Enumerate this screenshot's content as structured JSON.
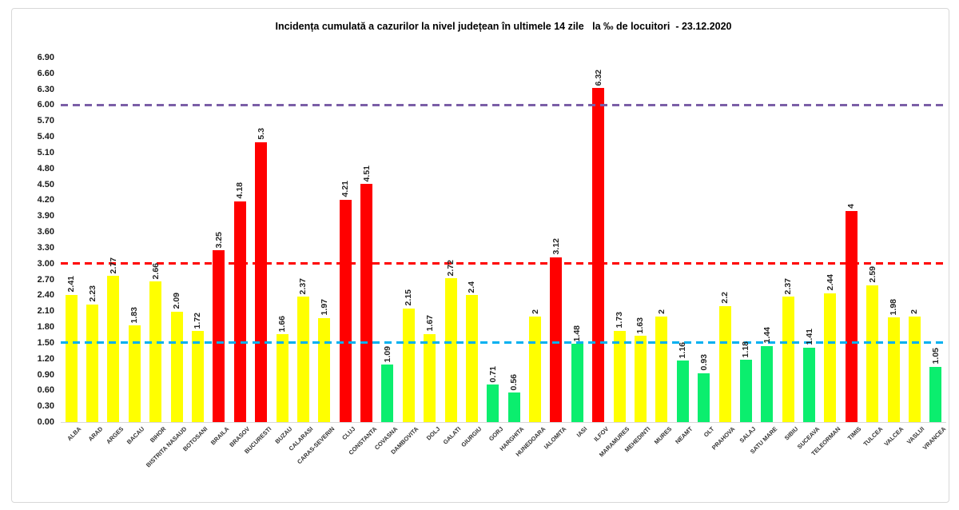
{
  "chart_data": {
    "type": "bar",
    "title": "Incidența cumulată a cazurilor la nivel județean în ultimele 14 zile   la ‰ de locuitori  - 23.12.2020",
    "xlabel": "",
    "ylabel": "",
    "ylim": [
      0,
      6.9
    ],
    "grid": false,
    "legend": false,
    "y_ticks": [
      "0.00",
      "0.30",
      "0.60",
      "0.90",
      "1.20",
      "1.50",
      "1.80",
      "2.10",
      "2.40",
      "2.70",
      "3.00",
      "3.30",
      "3.60",
      "3.90",
      "4.20",
      "4.50",
      "4.80",
      "5.10",
      "5.40",
      "5.70",
      "6.00",
      "6.30",
      "6.60",
      "6.90"
    ],
    "categories": [
      "ALBA",
      "ARAD",
      "ARGES",
      "BACAU",
      "BIHOR",
      "BISTRITA NASAUD",
      "BOTOSANI",
      "BRAILA",
      "BRASOV",
      "BUCURESTI",
      "BUZAU",
      "CALARASI",
      "CARAS-SEVERIN",
      "CLUJ",
      "CONSTANTA",
      "COVASNA",
      "DAMBOVITA",
      "DOLJ",
      "GALATI",
      "GIURGIU",
      "GORJ",
      "HARGHITA",
      "HUNEDOARA",
      "IALOMITA",
      "IASI",
      "ILFOV",
      "MARAMURES",
      "MEHEDINTI",
      "MURES",
      "NEAMT",
      "OLT",
      "PRAHOVA",
      "SALAJ",
      "SATU MARE",
      "SIBIU",
      "SUCEAVA",
      "TELEORMAN",
      "TIMIS",
      "TULCEA",
      "VALCEA",
      "VASLUI",
      "VRANCEA"
    ],
    "values": [
      2.41,
      2.23,
      2.77,
      1.83,
      2.66,
      2.09,
      1.72,
      3.25,
      4.18,
      5.3,
      1.66,
      2.37,
      1.97,
      4.21,
      4.51,
      1.09,
      2.15,
      1.67,
      2.72,
      2.4,
      0.71,
      0.56,
      2,
      3.12,
      1.48,
      6.32,
      1.73,
      1.63,
      2,
      1.16,
      0.93,
      2.2,
      1.18,
      1.44,
      2.37,
      1.41,
      2.44,
      4,
      2.59,
      1.98,
      2,
      1.05
    ],
    "value_labels": [
      "2.41",
      "2.23",
      "2.77",
      "1.83",
      "2.66",
      "2.09",
      "1.72",
      "3.25",
      "4.18",
      "5.3",
      "1.66",
      "2.37",
      "1.97",
      "4.21",
      "4.51",
      "1.09",
      "2.15",
      "1.67",
      "2.72",
      "2.4",
      "0.71",
      "0.56",
      "2",
      "3.12",
      "1.48",
      "6.32",
      "1.73",
      "1.63",
      "2",
      "1.16",
      "0.93",
      "2.2",
      "1.18",
      "1.44",
      "2.37",
      "1.41",
      "2.44",
      "4",
      "2.59",
      "1.98",
      "2",
      "1.05"
    ],
    "bar_colors": [
      "yellow",
      "yellow",
      "yellow",
      "yellow",
      "yellow",
      "yellow",
      "yellow",
      "red",
      "red",
      "red",
      "yellow",
      "yellow",
      "yellow",
      "red",
      "red",
      "green",
      "yellow",
      "yellow",
      "yellow",
      "yellow",
      "green",
      "green",
      "yellow",
      "red",
      "green",
      "red",
      "yellow",
      "yellow",
      "yellow",
      "green",
      "green",
      "yellow",
      "green",
      "green",
      "yellow",
      "green",
      "yellow",
      "red",
      "yellow",
      "yellow",
      "yellow",
      "green"
    ],
    "palette": {
      "yellow": "#FFFF00",
      "red": "#FF0000",
      "green": "#0BEE6E"
    },
    "reference_lines": [
      {
        "label": "6.00",
        "value": 6.0,
        "color": "#7B5EA7",
        "style": "dashed"
      },
      {
        "label": "3.00",
        "value": 3.0,
        "color": "#FF0000",
        "style": "dashed"
      },
      {
        "label": "1.50",
        "value": 1.5,
        "color": "#00B0F0",
        "style": "dashed"
      }
    ]
  }
}
